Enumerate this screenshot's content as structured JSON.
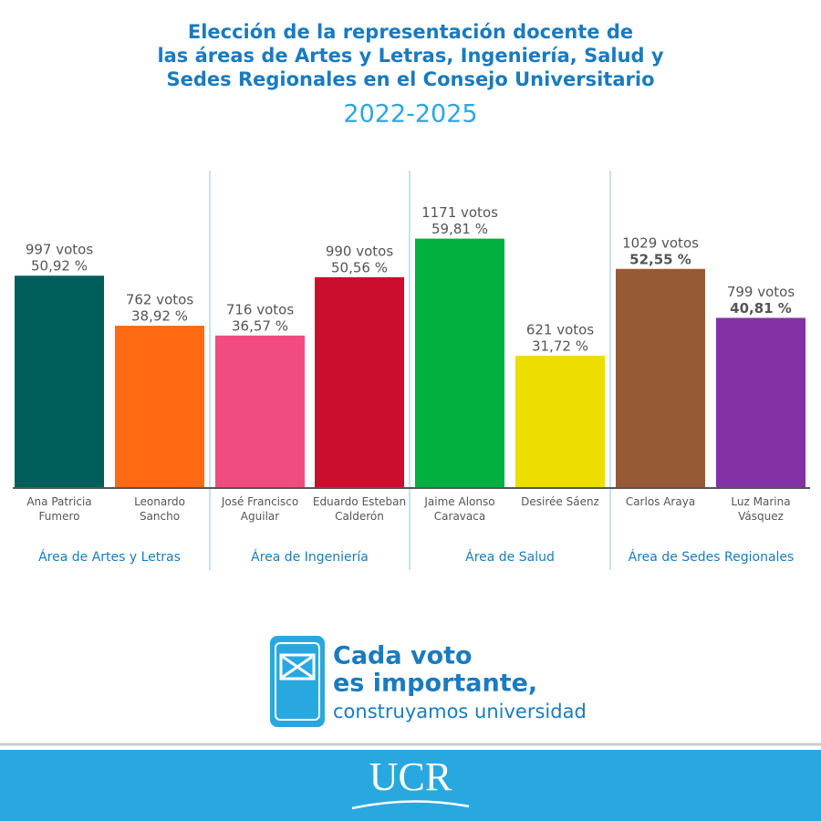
{
  "chart_data": {
    "type": "bar",
    "title": [
      "Elección de la representación docente de",
      "las áreas de Artes y Letras, Ingeniería, Salud y",
      "Sedes Regionales en el Consejo Universitario"
    ],
    "subtitle": "2022-2025",
    "categories": [
      "Ana Patricia\nFumero",
      "Leonardo\nSancho",
      "José Francisco\nAguilar",
      "Eduardo Esteban\nCalderón",
      "Jaime Alonso\nCaravaca",
      "Desirée Sáenz",
      "Carlos Araya",
      "Luz Marina\nVásquez"
    ],
    "values": [
      50.92,
      38.92,
      36.57,
      50.56,
      59.81,
      31.72,
      52.55,
      40.81
    ],
    "value_labels": [
      "50,92 %",
      "38,92 %",
      "36,57 %",
      "50,56 %",
      "59,81 %",
      "31,72 %",
      "52,55 %",
      "40,81 %"
    ],
    "votes": [
      997,
      762,
      716,
      990,
      1171,
      621,
      1029,
      799
    ],
    "vote_labels": [
      "997 votos",
      "762 votos",
      "716 votos",
      "990 votos",
      "1171 votos",
      "621 votos",
      "1029 votos",
      "799 votos"
    ],
    "colors": [
      "#005e5b",
      "#ff6a13",
      "#f24b80",
      "#cc0e2e",
      "#00b140",
      "#eedd00",
      "#965b34",
      "#8431a5"
    ],
    "groups": [
      "Área de Artes y Letras",
      "Área de Ingeniería",
      "Área de Salud",
      "Área de Sedes Regionales"
    ],
    "ylim": [
      0,
      70
    ]
  },
  "slogan": [
    "Cada voto",
    "es importante,",
    "construyamos universidad"
  ],
  "logo": "UCR"
}
